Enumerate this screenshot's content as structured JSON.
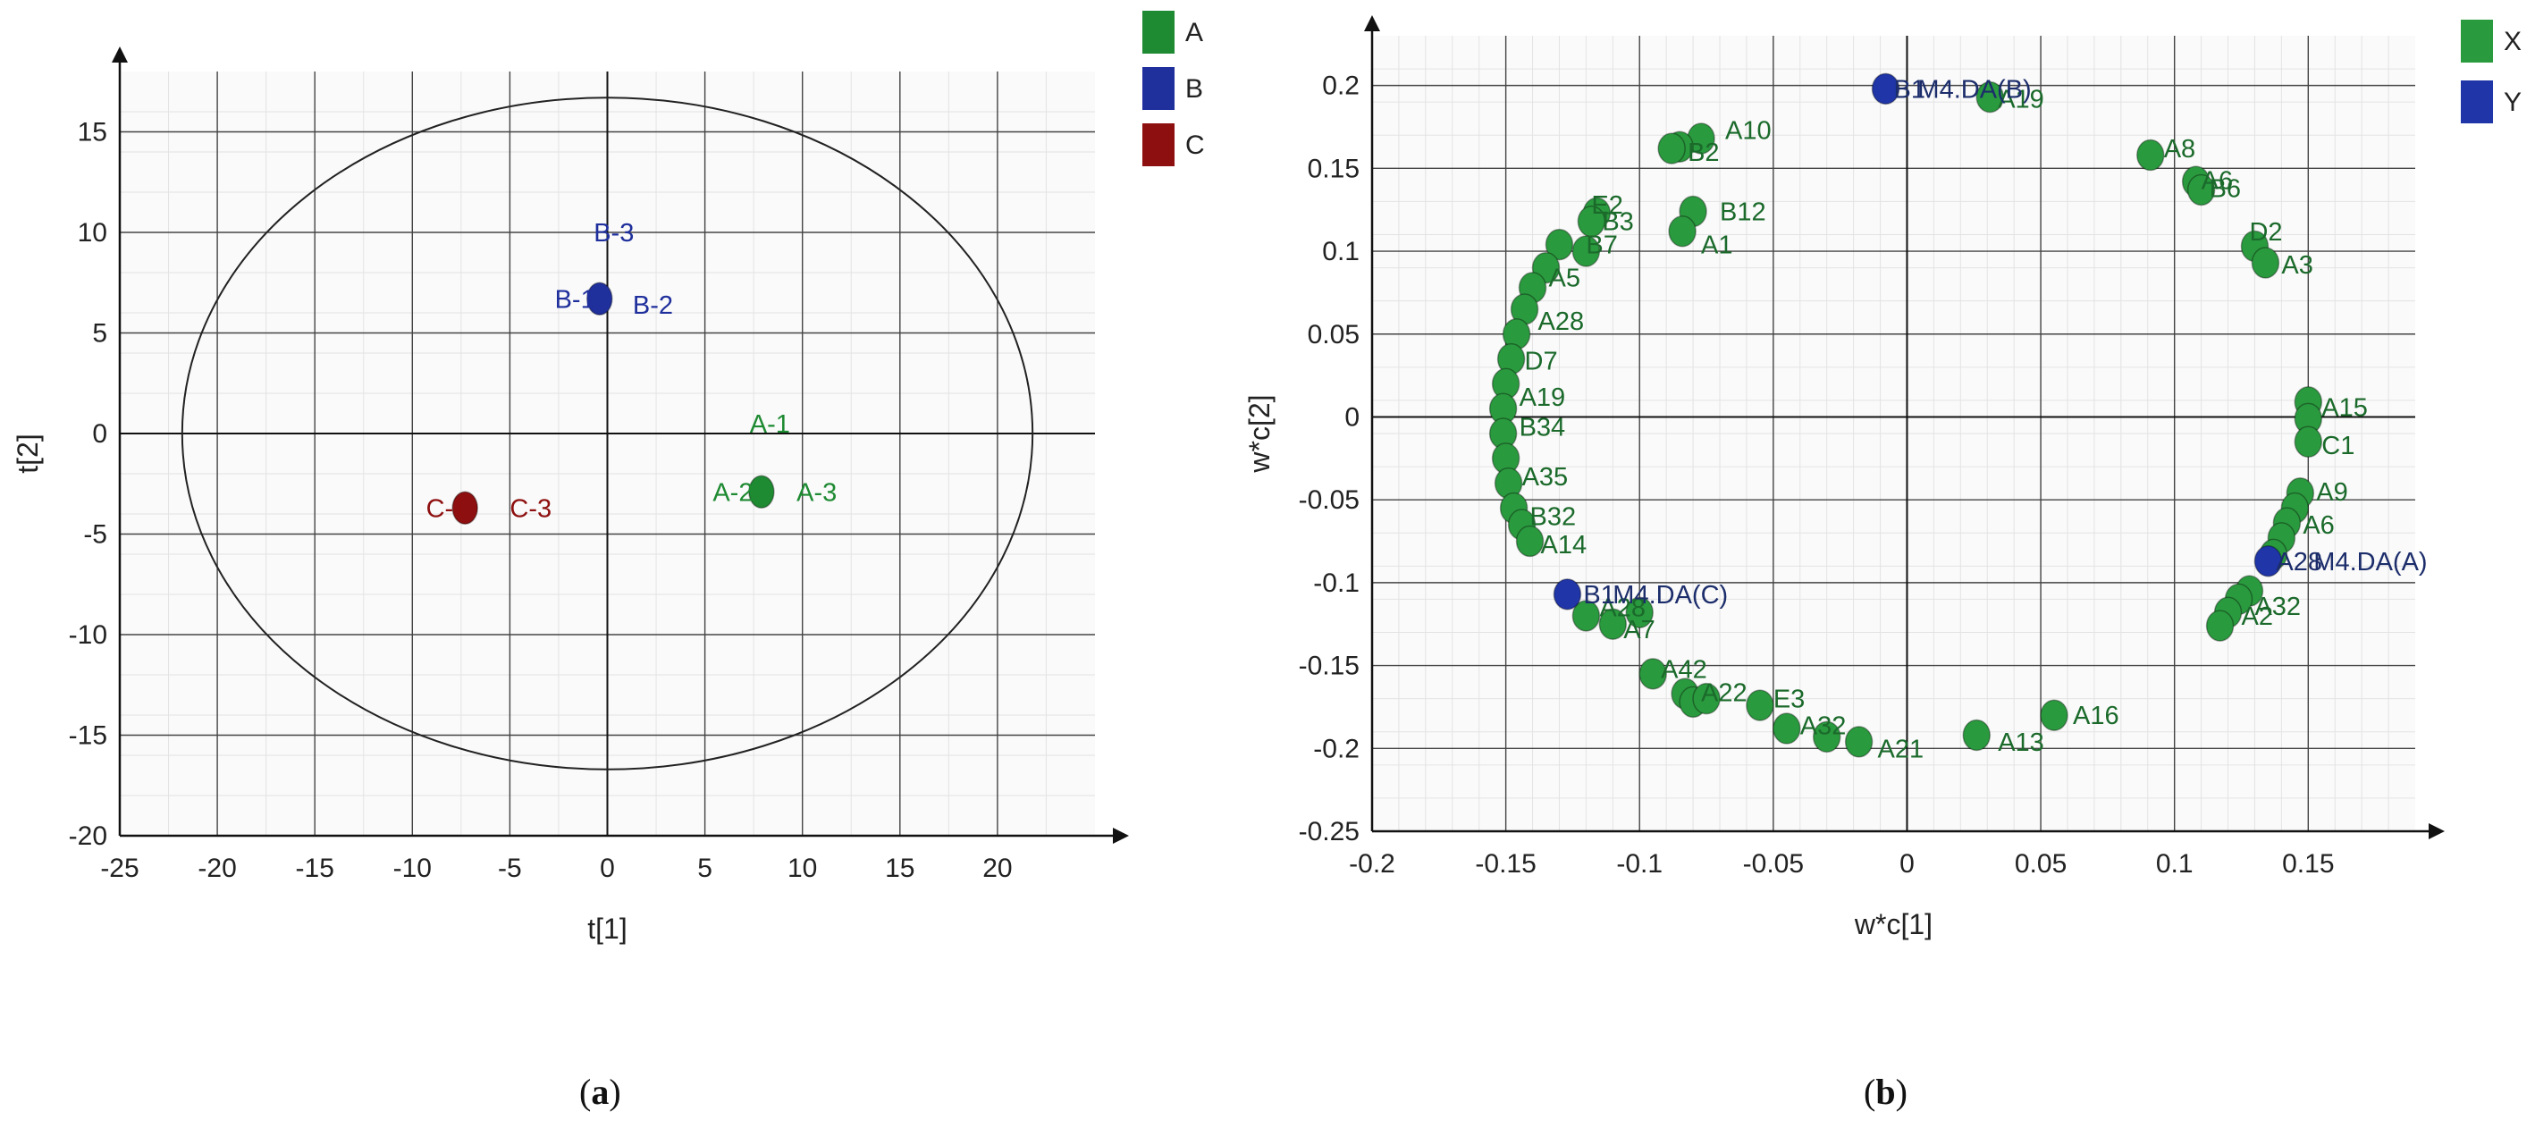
{
  "chart_data": [
    {
      "panel": "a",
      "caption_open": "(",
      "caption_letter": "a",
      "caption_close": ")",
      "type": "scatter",
      "xlabel": "t[1]",
      "ylabel": "t[2]",
      "xlim": [
        -25,
        25
      ],
      "ylim": [
        -20,
        18
      ],
      "xticks": [
        -25,
        -20,
        -15,
        -10,
        -5,
        0,
        5,
        10,
        15,
        20
      ],
      "yticks": [
        15,
        10,
        5,
        0,
        -5,
        -10,
        -15,
        -20
      ],
      "grid": true,
      "legend_position": "right",
      "ellipse": {
        "center": [
          0,
          0
        ],
        "rx": 21.8,
        "ry": 16.7
      },
      "series": [
        {
          "name": "A",
          "color": "#1e8a32",
          "points": [
            {
              "x": 7.9,
              "y": -2.9
            }
          ],
          "labels": [
            {
              "text": "A-1",
              "x": 7.3,
              "y": 0.5
            },
            {
              "text": "A-2",
              "x": 5.4,
              "y": -2.9
            },
            {
              "text": "A-3",
              "x": 9.7,
              "y": -2.9
            }
          ]
        },
        {
          "name": "B",
          "color": "#1f2f9c",
          "points": [
            {
              "x": -0.4,
              "y": 6.7
            }
          ],
          "labels": [
            {
              "text": "B-3",
              "x": -0.7,
              "y": 10.0
            },
            {
              "text": "B-1",
              "x": -2.7,
              "y": 6.7
            },
            {
              "text": "B-2",
              "x": 1.3,
              "y": 6.4
            }
          ]
        },
        {
          "name": "C",
          "color": "#8e0f0f",
          "points": [
            {
              "x": -7.3,
              "y": -3.7
            }
          ],
          "labels": [
            {
              "text": "C-1",
              "x": -9.3,
              "y": -3.7
            },
            {
              "text": "C-3",
              "x": -5.0,
              "y": -3.7
            }
          ]
        }
      ]
    },
    {
      "panel": "b",
      "caption_open": "(",
      "caption_letter": "b",
      "caption_close": ")",
      "type": "scatter",
      "xlabel": "w*c[1]",
      "ylabel": "w*c[2]",
      "xlim": [
        -0.2,
        0.19
      ],
      "ylim": [
        -0.25,
        0.23
      ],
      "xticks": [
        -0.2,
        -0.15,
        -0.1,
        -0.05,
        0,
        0.05,
        0.1,
        0.15
      ],
      "yticks": [
        0.2,
        0.15,
        0.1,
        0.05,
        0,
        -0.05,
        -0.1,
        -0.15,
        -0.2,
        -0.25
      ],
      "grid": true,
      "legend_position": "right",
      "series": [
        {
          "name": "X",
          "color": "#2a9a3e",
          "points": [
            {
              "x": -0.077,
              "y": 0.168
            },
            {
              "x": -0.085,
              "y": 0.163
            },
            {
              "x": -0.088,
              "y": 0.162
            },
            {
              "x": -0.08,
              "y": 0.124
            },
            {
              "x": -0.084,
              "y": 0.112
            },
            {
              "x": -0.116,
              "y": 0.123
            },
            {
              "x": -0.118,
              "y": 0.118
            },
            {
              "x": -0.12,
              "y": 0.1
            },
            {
              "x": -0.13,
              "y": 0.104
            },
            {
              "x": -0.135,
              "y": 0.09
            },
            {
              "x": -0.14,
              "y": 0.078
            },
            {
              "x": -0.143,
              "y": 0.065
            },
            {
              "x": -0.146,
              "y": 0.05
            },
            {
              "x": -0.148,
              "y": 0.035
            },
            {
              "x": -0.15,
              "y": 0.02
            },
            {
              "x": -0.151,
              "y": 0.005
            },
            {
              "x": -0.151,
              "y": -0.01
            },
            {
              "x": -0.15,
              "y": -0.025
            },
            {
              "x": -0.149,
              "y": -0.04
            },
            {
              "x": -0.147,
              "y": -0.055
            },
            {
              "x": -0.144,
              "y": -0.065
            },
            {
              "x": -0.141,
              "y": -0.075
            },
            {
              "x": -0.12,
              "y": -0.12
            },
            {
              "x": -0.11,
              "y": -0.125
            },
            {
              "x": -0.1,
              "y": -0.118
            },
            {
              "x": -0.095,
              "y": -0.155
            },
            {
              "x": -0.083,
              "y": -0.167
            },
            {
              "x": -0.08,
              "y": -0.172
            },
            {
              "x": -0.075,
              "y": -0.17
            },
            {
              "x": -0.055,
              "y": -0.174
            },
            {
              "x": -0.045,
              "y": -0.188
            },
            {
              "x": -0.03,
              "y": -0.193
            },
            {
              "x": -0.018,
              "y": -0.196
            },
            {
              "x": 0.026,
              "y": -0.192
            },
            {
              "x": 0.055,
              "y": -0.18
            },
            {
              "x": 0.031,
              "y": 0.193
            },
            {
              "x": 0.091,
              "y": 0.158
            },
            {
              "x": 0.108,
              "y": 0.142
            },
            {
              "x": 0.11,
              "y": 0.137
            },
            {
              "x": 0.13,
              "y": 0.103
            },
            {
              "x": 0.134,
              "y": 0.093
            },
            {
              "x": 0.15,
              "y": 0.009
            },
            {
              "x": 0.15,
              "y": -0.001
            },
            {
              "x": 0.15,
              "y": -0.015
            },
            {
              "x": 0.147,
              "y": -0.046
            },
            {
              "x": 0.145,
              "y": -0.055
            },
            {
              "x": 0.142,
              "y": -0.064
            },
            {
              "x": 0.14,
              "y": -0.073
            },
            {
              "x": 0.137,
              "y": -0.083
            },
            {
              "x": 0.128,
              "y": -0.105
            },
            {
              "x": 0.124,
              "y": -0.11
            },
            {
              "x": 0.12,
              "y": -0.118
            },
            {
              "x": 0.117,
              "y": -0.126
            }
          ],
          "labels": [
            {
              "text": "A10",
              "x": -0.068,
              "y": 0.173
            },
            {
              "text": "B2",
              "x": -0.082,
              "y": 0.16
            },
            {
              "text": "B12",
              "x": -0.07,
              "y": 0.124
            },
            {
              "text": "A1",
              "x": -0.077,
              "y": 0.104
            },
            {
              "text": "E2",
              "x": -0.118,
              "y": 0.128
            },
            {
              "text": "B3",
              "x": -0.114,
              "y": 0.118
            },
            {
              "text": "B7",
              "x": -0.12,
              "y": 0.104
            },
            {
              "text": "A5",
              "x": -0.134,
              "y": 0.084
            },
            {
              "text": "A28",
              "x": -0.138,
              "y": 0.058
            },
            {
              "text": "D7",
              "x": -0.143,
              "y": 0.034
            },
            {
              "text": "A19",
              "x": -0.145,
              "y": 0.012
            },
            {
              "text": "B34",
              "x": -0.145,
              "y": -0.006
            },
            {
              "text": "A35",
              "x": -0.144,
              "y": -0.036
            },
            {
              "text": "B32",
              "x": -0.141,
              "y": -0.06
            },
            {
              "text": "A14",
              "x": -0.137,
              "y": -0.077
            },
            {
              "text": "A28",
              "x": -0.115,
              "y": -0.115
            },
            {
              "text": "A7",
              "x": -0.106,
              "y": -0.128
            },
            {
              "text": "A42",
              "x": -0.092,
              "y": -0.152
            },
            {
              "text": "A22",
              "x": -0.077,
              "y": -0.166
            },
            {
              "text": "E3",
              "x": -0.05,
              "y": -0.17
            },
            {
              "text": "A32",
              "x": -0.04,
              "y": -0.186
            },
            {
              "text": "A21",
              "x": -0.011,
              "y": -0.2
            },
            {
              "text": "A13",
              "x": 0.034,
              "y": -0.196
            },
            {
              "text": "A16",
              "x": 0.062,
              "y": -0.18
            },
            {
              "text": "A19",
              "x": 0.034,
              "y": 0.192
            },
            {
              "text": "A8",
              "x": 0.096,
              "y": 0.162
            },
            {
              "text": "A6",
              "x": 0.11,
              "y": 0.143
            },
            {
              "text": "B6",
              "x": 0.113,
              "y": 0.138
            },
            {
              "text": "D2",
              "x": 0.128,
              "y": 0.112
            },
            {
              "text": "A3",
              "x": 0.14,
              "y": 0.092
            },
            {
              "text": "A15",
              "x": 0.155,
              "y": 0.006
            },
            {
              "text": "C1",
              "x": 0.155,
              "y": -0.017
            },
            {
              "text": "A9",
              "x": 0.153,
              "y": -0.045
            },
            {
              "text": "A6",
              "x": 0.148,
              "y": -0.065
            },
            {
              "text": "A2",
              "x": 0.125,
              "y": -0.12
            },
            {
              "text": "A32",
              "x": 0.13,
              "y": -0.114
            }
          ]
        },
        {
          "name": "Y",
          "color": "#1f35a8",
          "points": [
            {
              "x": -0.008,
              "y": 0.198
            },
            {
              "x": 0.135,
              "y": -0.087
            },
            {
              "x": -0.127,
              "y": -0.107
            }
          ],
          "labels": [
            {
              "text": "B1",
              "x": -0.005,
              "y": 0.198
            },
            {
              "text": "M4.DA(B)",
              "x": 0.004,
              "y": 0.198
            },
            {
              "text": "A28",
              "x": 0.138,
              "y": -0.087
            },
            {
              "text": "M4.DA(A)",
              "x": 0.152,
              "y": -0.087
            },
            {
              "text": "B1",
              "x": -0.121,
              "y": -0.107
            },
            {
              "text": "M4.DA(C)",
              "x": -0.11,
              "y": -0.107
            }
          ]
        }
      ]
    }
  ]
}
